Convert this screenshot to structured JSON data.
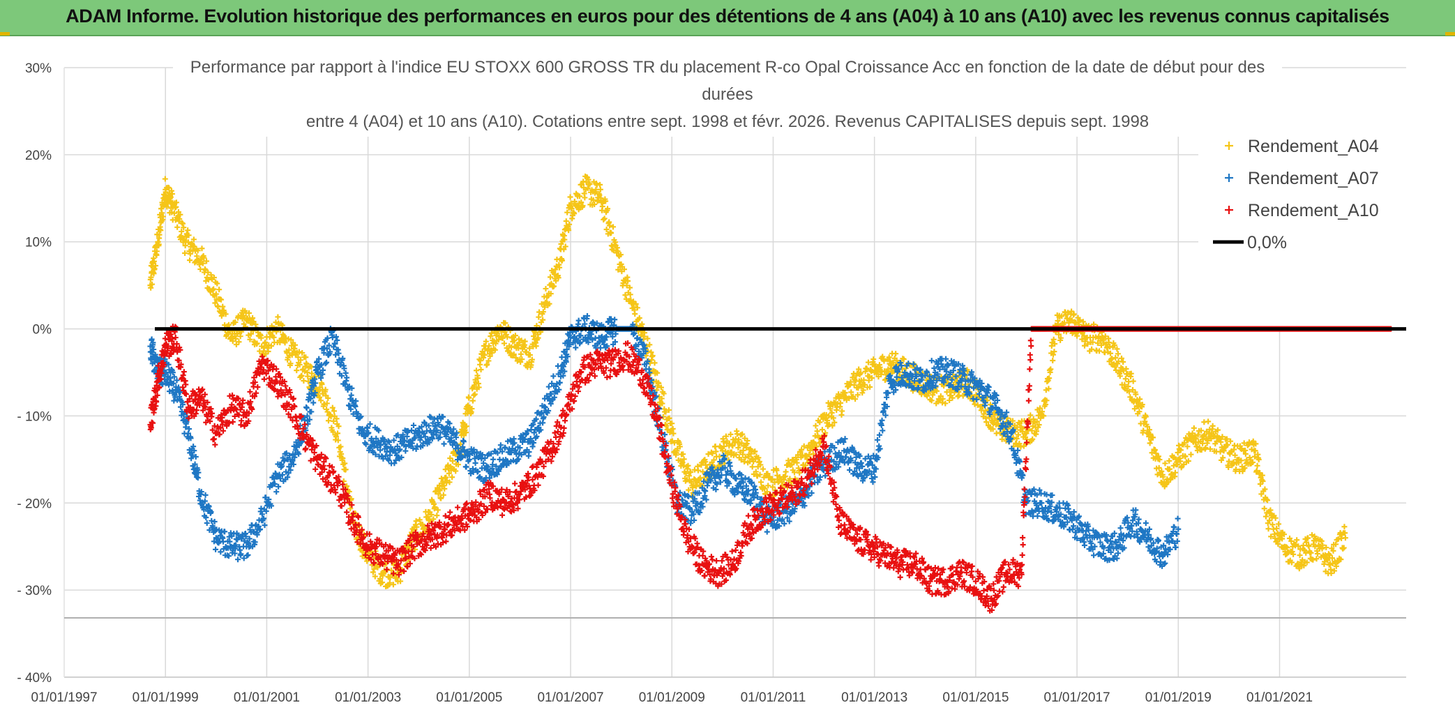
{
  "banner": {
    "title": "ADAM Informe. Evolution historique des performances en euros pour des détentions de 4 ans (A04) à 10 ans (A10) avec les revenus connus capitalisés"
  },
  "colors": {
    "banner_bg": "#7dc87a",
    "A04": "#f5c518",
    "A07": "#1f77c4",
    "A10": "#e81010",
    "zero_line": "#000000"
  },
  "chart_data": {
    "type": "scatter",
    "title_lines": [
      "Performance par rapport à l'indice EU STOXX 600 GROSS TR  du placement R-co Opal Croissance Acc en fonction de la date de début pour des",
      "durées",
      "entre 4 (A04) et 10 ans (A10). Cotations entre sept. 1998 et févr. 2026. Revenus CAPITALISES depuis sept. 1998"
    ],
    "xlabel": "",
    "ylabel": "",
    "xlim": [
      1997.0,
      2023.5
    ],
    "ylim": [
      -40,
      30
    ],
    "x_ticks": [
      {
        "value": 1997,
        "label": "01/01/1997"
      },
      {
        "value": 1999,
        "label": "01/01/1999"
      },
      {
        "value": 2001,
        "label": "01/01/2001"
      },
      {
        "value": 2003,
        "label": "01/01/2003"
      },
      {
        "value": 2005,
        "label": "01/01/2005"
      },
      {
        "value": 2007,
        "label": "01/01/2007"
      },
      {
        "value": 2009,
        "label": "01/01/2009"
      },
      {
        "value": 2011,
        "label": "01/01/2011"
      },
      {
        "value": 2013,
        "label": "01/01/2013"
      },
      {
        "value": 2015,
        "label": "01/01/2015"
      },
      {
        "value": 2017,
        "label": "01/01/2017"
      },
      {
        "value": 2019,
        "label": "01/01/2019"
      },
      {
        "value": 2021,
        "label": "01/01/2021"
      }
    ],
    "y_ticks": [
      {
        "value": 30,
        "label": "30%"
      },
      {
        "value": 20,
        "label": "20%"
      },
      {
        "value": 10,
        "label": "10%"
      },
      {
        "value": 0,
        "label": "0%"
      },
      {
        "value": -10,
        "label": "- 10%"
      },
      {
        "value": -20,
        "label": "- 20%"
      },
      {
        "value": -30,
        "label": "- 30%"
      },
      {
        "value": -40,
        "label": "- 40%"
      }
    ],
    "series": [
      {
        "name": "Rendement_A04",
        "color": "#f5c518",
        "x": [
          1998.7,
          1998.85,
          1999.0,
          1999.15,
          1999.4,
          1999.7,
          2000.0,
          2000.3,
          2000.6,
          2000.9,
          2001.2,
          2001.5,
          2001.8,
          2002.1,
          2002.4,
          2002.7,
          2003.0,
          2003.3,
          2003.6,
          2003.9,
          2004.2,
          2004.5,
          2004.8,
          2005.0,
          2005.3,
          2005.6,
          2005.9,
          2006.2,
          2006.5,
          2006.8,
          2007.0,
          2007.3,
          2007.6,
          2007.9,
          2008.2,
          2008.5,
          2008.8,
          2009.1,
          2009.4,
          2009.7,
          2010.0,
          2010.3,
          2010.6,
          2010.9,
          2011.2,
          2011.5,
          2011.8,
          2012.1,
          2012.4,
          2012.7,
          2013.0,
          2013.3,
          2013.6,
          2013.9,
          2014.2,
          2014.5,
          2014.8,
          2015.1,
          2015.4,
          2015.7,
          2016.0,
          2016.3,
          2016.6,
          2016.9,
          2017.2,
          2017.5,
          2017.8,
          2018.1,
          2018.4,
          2018.7,
          2019.0,
          2019.3,
          2019.6,
          2019.9,
          2020.2,
          2020.5,
          2020.8,
          2021.1,
          2021.4,
          2021.7,
          2022.0,
          2022.3
        ],
        "values": [
          5,
          10,
          16,
          14,
          10,
          8,
          4,
          -1,
          1,
          -2,
          0,
          -3,
          -5,
          -7,
          -12,
          -22,
          -26,
          -28,
          -28,
          -24,
          -22,
          -18,
          -14,
          -9,
          -3,
          0,
          -2,
          -3,
          3,
          8,
          14,
          16,
          15,
          9,
          3,
          -2,
          -8,
          -14,
          -18,
          -16,
          -14,
          -13,
          -15,
          -18,
          -17,
          -16,
          -13,
          -10,
          -8,
          -6,
          -5,
          -4,
          -5,
          -6,
          -7,
          -7,
          -6,
          -8,
          -11,
          -12,
          -12,
          -10,
          0,
          1,
          -1,
          -1,
          -4,
          -7,
          -12,
          -17,
          -15,
          -13,
          -12,
          -14,
          -15,
          -14,
          -22,
          -25,
          -26,
          -25,
          -27,
          -24
        ]
      },
      {
        "name": "Rendement_A07",
        "color": "#1f77c4",
        "x": [
          1998.7,
          1998.85,
          1999.0,
          1999.2,
          1999.45,
          1999.7,
          2000.0,
          2000.3,
          2000.6,
          2000.9,
          2001.2,
          2001.5,
          2001.8,
          2002.0,
          2002.3,
          2002.6,
          2002.9,
          2003.2,
          2003.5,
          2003.8,
          2004.1,
          2004.4,
          2004.7,
          2005.0,
          2005.3,
          2005.6,
          2005.9,
          2006.2,
          2006.5,
          2006.8,
          2007.0,
          2007.3,
          2007.6,
          2007.9,
          2008.2,
          2008.5,
          2008.8,
          2009.1,
          2009.4,
          2009.7,
          2010.0,
          2010.3,
          2010.6,
          2010.9,
          2011.2,
          2011.5,
          2011.8,
          2012.1,
          2012.4,
          2012.7,
          2013.0,
          2013.3,
          2013.6,
          2013.9,
          2014.2,
          2014.5,
          2014.8,
          2015.1,
          2015.4,
          2015.7,
          2016.0,
          2016.3,
          2016.6,
          2016.9,
          2017.2,
          2017.5,
          2017.8,
          2018.1,
          2018.4,
          2018.7,
          2019.0
        ],
        "values": [
          -2,
          -5,
          -5,
          -7,
          -12,
          -19,
          -24,
          -25,
          -25,
          -22,
          -17,
          -15,
          -10,
          -5,
          -1,
          -7,
          -12,
          -13,
          -14,
          -13,
          -12,
          -11,
          -13,
          -15,
          -16,
          -15,
          -14,
          -13,
          -9,
          -5,
          -1,
          0,
          -1,
          0,
          0,
          -4,
          -12,
          -20,
          -21,
          -18,
          -16,
          -18,
          -19,
          -22,
          -21,
          -20,
          -17,
          -15,
          -14,
          -16,
          -16,
          -6,
          -5,
          -6,
          -5,
          -5,
          -6,
          -7,
          -9,
          -12,
          -20,
          -20,
          -21,
          -22,
          -24,
          -25,
          -25,
          -22,
          -24,
          -26,
          -23
        ]
      },
      {
        "name": "Rendement_A10",
        "color": "#e81010",
        "x": [
          1998.7,
          1998.85,
          1999.0,
          1999.2,
          1999.45,
          1999.7,
          2000.0,
          2000.3,
          2000.6,
          2000.9,
          2001.2,
          2001.5,
          2001.8,
          2002.1,
          2002.4,
          2002.7,
          2003.0,
          2003.3,
          2003.6,
          2003.9,
          2004.2,
          2004.5,
          2004.8,
          2005.1,
          2005.4,
          2005.7,
          2006.0,
          2006.3,
          2006.6,
          2006.9,
          2007.2,
          2007.5,
          2007.8,
          2008.1,
          2008.4,
          2008.7,
          2009.0,
          2009.3,
          2009.6,
          2009.9,
          2010.2,
          2010.5,
          2010.8,
          2011.1,
          2011.4,
          2011.7,
          2012.0,
          2012.3,
          2012.6,
          2012.9,
          2013.2,
          2013.5,
          2013.8,
          2014.1,
          2014.4,
          2014.7,
          2015.0,
          2015.3,
          2015.6,
          2015.9,
          2016.1,
          2016.4,
          2016.8,
          2017.2,
          2017.6,
          2018.0,
          2018.4,
          2018.8,
          2019.2,
          2019.6,
          2020.0,
          2020.4,
          2020.8,
          2021.2,
          2021.6,
          2022.0,
          2022.4,
          2022.8,
          2023.2
        ],
        "values": [
          -11,
          -6,
          -2,
          -1,
          -9,
          -8,
          -12,
          -9,
          -10,
          -4,
          -6,
          -9,
          -13,
          -16,
          -18,
          -22,
          -25,
          -26,
          -27,
          -25,
          -24,
          -23,
          -22,
          -21,
          -19,
          -20,
          -19,
          -17,
          -14,
          -10,
          -5,
          -4,
          -4,
          -3,
          -5,
          -10,
          -18,
          -24,
          -27,
          -28,
          -27,
          -23,
          -21,
          -20,
          -19,
          -17,
          -13,
          -22,
          -24,
          -25,
          -26,
          -27,
          -27,
          -29,
          -29,
          -28,
          -29,
          -31,
          -28,
          -28,
          0,
          0,
          0,
          0,
          0,
          0,
          0,
          0,
          0,
          0,
          0,
          0,
          0,
          0,
          0,
          0,
          0,
          0,
          0
        ]
      }
    ],
    "reference_line": {
      "name": "0,0%",
      "value": 0,
      "color": "#000000"
    },
    "legend": {
      "position": "top-right",
      "entries": [
        "Rendement_A04",
        "Rendement_A07",
        "Rendement_A10",
        "0,0%"
      ]
    },
    "grid": true
  }
}
